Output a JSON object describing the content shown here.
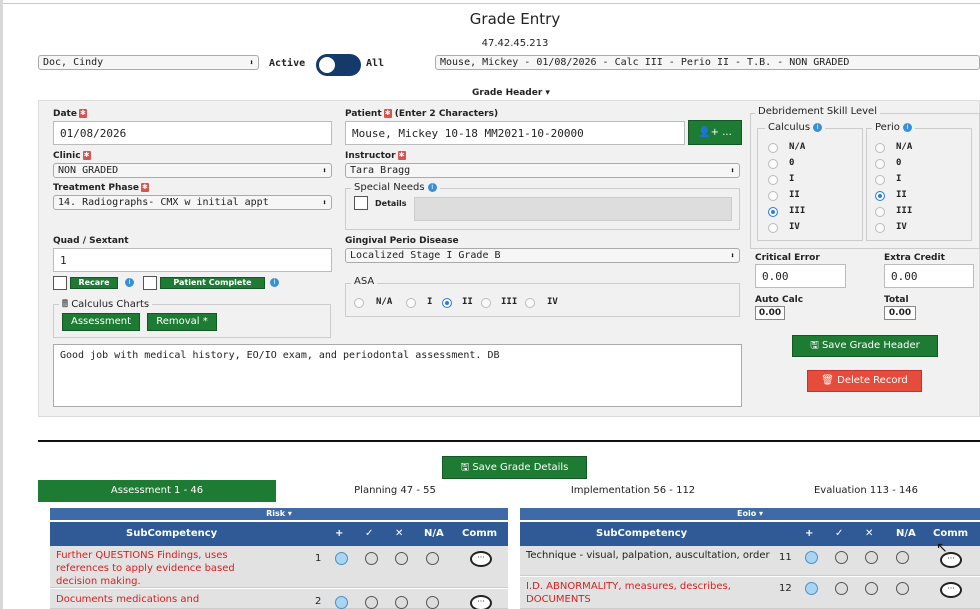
{
  "header": {
    "title": "Grade Entry",
    "ip": "47.42.45.213",
    "student_select": "Doc, Cindy",
    "active_label": "Active",
    "all_label": "All",
    "record_select": "Mouse, Mickey - 01/08/2026 - Calc III - Perio II - T.B. - NON GRADED"
  },
  "grade_header": {
    "toggle_label": "Grade Header ▾",
    "date_label": "Date",
    "date_value": "01/08/2026",
    "clinic_label": "Clinic",
    "clinic_value": "NON GRADED",
    "treatment_label": "Treatment Phase",
    "treatment_value": "14. Radiographs- CMX w initial appt",
    "quad_label": "Quad / Sextant",
    "quad_value": "1",
    "recare_label": "Recare",
    "patient_complete_label": "Patient Complete",
    "calculus_charts_label": "Calculus Charts",
    "assessment_btn": "Assessment",
    "removal_btn": "Removal *",
    "patient_label": "Patient",
    "patient_hint": "(Enter 2 Characters)",
    "patient_value": "Mouse, Mickey 10-18 MM2021-10-20000",
    "add_patient_btn": "...",
    "instructor_label": "Instructor",
    "instructor_value": "Tara Bragg",
    "special_needs_label": "Special Needs",
    "details_label": "Details",
    "gingival_label": "Gingival Perio Disease",
    "gingival_value": "Localized Stage I Grade B",
    "asa_label": "ASA",
    "asa_options": [
      "N/A",
      "I",
      "II",
      "III",
      "IV"
    ],
    "asa_selected": "II",
    "comment": "Good job with medical history, EO/IO exam, and periodontal assessment. DB",
    "debridement_label": "Debridement Skill Level",
    "calculus_label": "Calculus",
    "perio_label": "Perio",
    "levels": [
      "N/A",
      "0",
      "I",
      "II",
      "III",
      "IV"
    ],
    "calculus_selected": "III",
    "perio_selected": "II",
    "critical_error_label": "Critical Error",
    "critical_error_value": "0.00",
    "extra_credit_label": "Extra Credit",
    "extra_credit_value": "0.00",
    "auto_calc_label": "Auto Calc",
    "auto_calc_value": "0.00",
    "total_label": "Total",
    "total_value": "0.00",
    "save_header_btn": "Save Grade Header",
    "delete_btn": "Delete Record"
  },
  "details": {
    "save_details_btn": "Save Grade Details",
    "tabs": [
      "Assessment 1 - 46",
      "Planning 47 - 55",
      "Implementation 56 - 112",
      "Evaluation 113 - 146"
    ],
    "active_tab": "Assessment 1 - 46",
    "left_table": {
      "group": "Risk ▾",
      "headers": [
        "SubCompetency",
        "+",
        "✓",
        "✕",
        "N/A",
        "Comm"
      ],
      "rows": [
        {
          "text": "Further QUESTIONS Findings, uses references to apply evidence based decision making.",
          "num": "1",
          "red": true
        },
        {
          "text": "Documents medications and",
          "num": "2",
          "red": true
        }
      ]
    },
    "right_table": {
      "group": "Eoio ▾",
      "headers": [
        "SubCompetency",
        "+",
        "✓",
        "✕",
        "N/A",
        "Comm"
      ],
      "rows": [
        {
          "text": "Technique - visual, palpation, auscultation, order",
          "num": "11",
          "red": false
        },
        {
          "text": "I.D. ABNORMALITY, measures, describes, DOCUMENTS",
          "num": "12",
          "red": true
        }
      ]
    }
  }
}
